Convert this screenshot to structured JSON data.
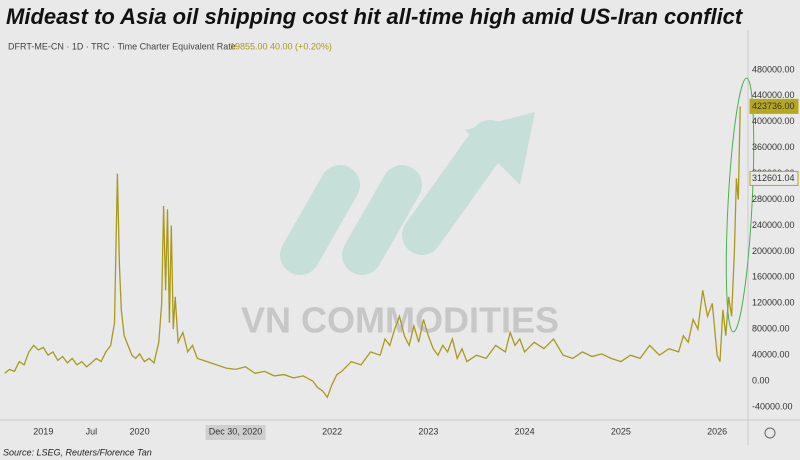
{
  "chart_data": {
    "type": "line",
    "title": "Mideast to Asia oil shipping cost hit all-time high amid US-Iran conflict",
    "subtitle": "DFRT-ME-CN · 1D · TRC · Time Charter Equivalent Rate",
    "quote": "19855.00 40.00 (+0.20%)",
    "watermark": "VN COMMODITIES",
    "source": "Source: LSEG, Reuters/Florence Tan",
    "x": [
      2018.6,
      2018.65,
      2018.7,
      2018.75,
      2018.8,
      2018.85,
      2018.9,
      2018.95,
      2019.0,
      2019.05,
      2019.1,
      2019.15,
      2019.2,
      2019.25,
      2019.3,
      2019.35,
      2019.4,
      2019.45,
      2019.5,
      2019.55,
      2019.6,
      2019.65,
      2019.7,
      2019.74,
      2019.77,
      2019.79,
      2019.81,
      2019.84,
      2019.88,
      2019.92,
      2019.96,
      2020.0,
      2020.05,
      2020.1,
      2020.15,
      2020.2,
      2020.23,
      2020.25,
      2020.27,
      2020.29,
      2020.31,
      2020.33,
      2020.35,
      2020.37,
      2020.4,
      2020.45,
      2020.5,
      2020.55,
      2020.6,
      2020.7,
      2020.8,
      2020.9,
      2021.0,
      2021.1,
      2021.2,
      2021.3,
      2021.4,
      2021.5,
      2021.6,
      2021.7,
      2021.8,
      2021.85,
      2021.9,
      2021.95,
      2022.0,
      2022.05,
      2022.1,
      2022.2,
      2022.3,
      2022.4,
      2022.5,
      2022.55,
      2022.6,
      2022.65,
      2022.7,
      2022.75,
      2022.8,
      2022.85,
      2022.9,
      2022.95,
      2023.0,
      2023.05,
      2023.1,
      2023.15,
      2023.2,
      2023.25,
      2023.3,
      2023.35,
      2023.4,
      2023.5,
      2023.6,
      2023.7,
      2023.8,
      2023.85,
      2023.9,
      2023.95,
      2024.0,
      2024.1,
      2024.2,
      2024.3,
      2024.4,
      2024.5,
      2024.6,
      2024.7,
      2024.8,
      2024.9,
      2025.0,
      2025.1,
      2025.2,
      2025.3,
      2025.4,
      2025.5,
      2025.6,
      2025.65,
      2025.7,
      2025.75,
      2025.8,
      2025.85,
      2025.9,
      2025.95,
      2026.0,
      2026.03,
      2026.06,
      2026.09,
      2026.12,
      2026.15,
      2026.18,
      2026.2,
      2026.22,
      2026.24
    ],
    "series": [
      {
        "name": "DFRT-ME-CN",
        "color": "#a89a1e",
        "values": [
          12000,
          18000,
          15000,
          30000,
          25000,
          45000,
          55000,
          48000,
          52000,
          40000,
          45000,
          32000,
          38000,
          28000,
          35000,
          25000,
          30000,
          22000,
          28000,
          35000,
          30000,
          45000,
          55000,
          90000,
          320000,
          180000,
          110000,
          70000,
          55000,
          40000,
          35000,
          42000,
          30000,
          35000,
          28000,
          60000,
          120000,
          270000,
          140000,
          265000,
          90000,
          240000,
          80000,
          130000,
          60000,
          75000,
          45000,
          55000,
          35000,
          30000,
          25000,
          20000,
          18000,
          22000,
          12000,
          15000,
          8000,
          10000,
          5000,
          8000,
          0,
          -10000,
          -15000,
          -25000,
          -5000,
          10000,
          15000,
          30000,
          25000,
          45000,
          40000,
          65000,
          55000,
          80000,
          100000,
          70000,
          55000,
          85000,
          60000,
          95000,
          70000,
          50000,
          40000,
          55000,
          45000,
          65000,
          35000,
          50000,
          30000,
          40000,
          35000,
          55000,
          45000,
          75000,
          55000,
          65000,
          45000,
          60000,
          50000,
          65000,
          40000,
          35000,
          45000,
          38000,
          42000,
          35000,
          30000,
          40000,
          35000,
          55000,
          40000,
          50000,
          45000,
          70000,
          60000,
          95000,
          80000,
          140000,
          100000,
          120000,
          40000,
          30000,
          110000,
          70000,
          130000,
          100000,
          200000,
          312601.04,
          280000,
          423736
        ]
      }
    ],
    "xlim": [
      2018.55,
      2026.3
    ],
    "xticks": [
      {
        "value": 2019.0,
        "label": "2019"
      },
      {
        "value": 2019.5,
        "label": "Jul"
      },
      {
        "value": 2020.0,
        "label": "2020"
      },
      {
        "value": 2020.997,
        "label": "Dec 30, 2020"
      },
      {
        "value": 2022.0,
        "label": "2022"
      },
      {
        "value": 2023.0,
        "label": "2023"
      },
      {
        "value": 2024.0,
        "label": "2024"
      },
      {
        "value": 2025.0,
        "label": "2025"
      },
      {
        "value": 2026.0,
        "label": "2026"
      }
    ],
    "ylim": [
      -60000,
      540000
    ],
    "yticks": [
      {
        "value": -40000,
        "label": "-40000.00"
      },
      {
        "value": 0,
        "label": "0.00"
      },
      {
        "value": 40000,
        "label": "40000.00"
      },
      {
        "value": 80000,
        "label": "80000.00"
      },
      {
        "value": 120000,
        "label": "120000.00"
      },
      {
        "value": 160000,
        "label": "160000.00"
      },
      {
        "value": 200000,
        "label": "200000.00"
      },
      {
        "value": 240000,
        "label": "240000.00"
      },
      {
        "value": 280000,
        "label": "280000.00"
      },
      {
        "value": 320000,
        "label": "320000.00"
      },
      {
        "value": 360000,
        "label": "360000.00"
      },
      {
        "value": 400000,
        "label": "400000.00"
      },
      {
        "value": 440000,
        "label": "440000.00"
      },
      {
        "value": 480000,
        "label": "480000.00"
      }
    ],
    "price_labels": [
      {
        "value": 423736,
        "label": "423736.00",
        "color": "#b5a81c"
      },
      {
        "value": 312601.04,
        "label": "312601.04",
        "color": "#e9e9e9"
      }
    ]
  }
}
